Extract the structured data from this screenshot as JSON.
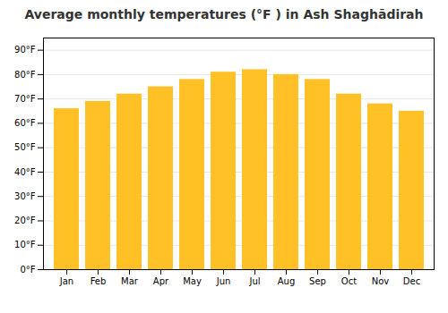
{
  "chart_data": {
    "type": "bar",
    "title": "Average monthly temperatures (°F ) in Ash Shaghādirah",
    "categories": [
      "Jan",
      "Feb",
      "Mar",
      "Apr",
      "May",
      "Jun",
      "Jul",
      "Aug",
      "Sep",
      "Oct",
      "Nov",
      "Dec"
    ],
    "values": [
      66,
      69,
      72,
      75,
      78,
      81,
      82,
      80,
      78,
      72,
      68,
      65
    ],
    "color": "#FFC125",
    "ylim": [
      0,
      95
    ],
    "yticks": [
      {
        "value": 0,
        "label": "0°F"
      },
      {
        "value": 10,
        "label": "10°F"
      },
      {
        "value": 20,
        "label": "20°F"
      },
      {
        "value": 30,
        "label": "30°F"
      },
      {
        "value": 40,
        "label": "40°F"
      },
      {
        "value": 50,
        "label": "50°F"
      },
      {
        "value": 60,
        "label": "60°F"
      },
      {
        "value": 70,
        "label": "70°F"
      },
      {
        "value": 80,
        "label": "80°F"
      },
      {
        "value": 90,
        "label": "90°F"
      }
    ],
    "grid": true
  }
}
